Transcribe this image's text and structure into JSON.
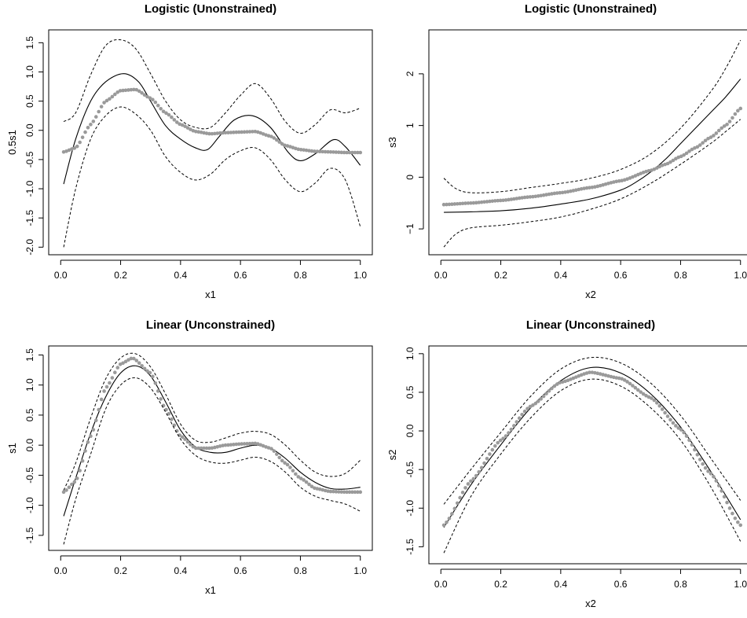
{
  "chart_data": [
    {
      "type": "line",
      "title": "Logistic (Unonstrained)",
      "xlabel": "x1",
      "ylabel": "0.5s1",
      "xlim": [
        -0.04,
        1.04
      ],
      "ylim": [
        -2.13,
        1.72
      ],
      "xticks": [
        0.0,
        0.2,
        0.4,
        0.6,
        0.8,
        1.0
      ],
      "xtick_labels": [
        "0.0",
        "0.2",
        "0.4",
        "0.6",
        "0.8",
        "1.0"
      ],
      "yticks": [
        -2.0,
        -1.5,
        -1.0,
        -0.5,
        0.0,
        0.5,
        1.0,
        1.5
      ],
      "ytick_labels": [
        "-2.0",
        "-1.5",
        "-1.0",
        "-0.5",
        "0.0",
        "0.5",
        "1.0",
        "1.5"
      ],
      "grid": false,
      "series": [
        {
          "role": "true-function",
          "style": "solid-black",
          "x": [
            0.01,
            0.05,
            0.1,
            0.15,
            0.21,
            0.26,
            0.3,
            0.35,
            0.4,
            0.45,
            0.49,
            0.53,
            0.58,
            0.64,
            0.7,
            0.76,
            0.8,
            0.85,
            0.91,
            0.95,
            1.0
          ],
          "y": [
            -0.92,
            -0.15,
            0.5,
            0.83,
            0.97,
            0.83,
            0.5,
            0.08,
            -0.15,
            -0.3,
            -0.33,
            -0.1,
            0.18,
            0.25,
            0.05,
            -0.38,
            -0.52,
            -0.4,
            -0.16,
            -0.28,
            -0.6
          ]
        },
        {
          "role": "estimate",
          "style": "grey-dots",
          "x": [
            0.01,
            0.05,
            0.1,
            0.15,
            0.2,
            0.25,
            0.3,
            0.35,
            0.4,
            0.45,
            0.5,
            0.55,
            0.6,
            0.65,
            0.7,
            0.75,
            0.8,
            0.85,
            0.9,
            0.95,
            1.0
          ],
          "y": [
            -0.37,
            -0.3,
            0.1,
            0.5,
            0.68,
            0.7,
            0.55,
            0.3,
            0.1,
            -0.02,
            -0.06,
            -0.04,
            -0.03,
            -0.02,
            -0.1,
            -0.26,
            -0.33,
            -0.36,
            -0.37,
            -0.38,
            -0.38
          ]
        },
        {
          "role": "upper-band",
          "style": "dashed-black",
          "x": [
            0.01,
            0.05,
            0.1,
            0.15,
            0.2,
            0.25,
            0.3,
            0.35,
            0.4,
            0.45,
            0.5,
            0.55,
            0.6,
            0.65,
            0.7,
            0.75,
            0.8,
            0.85,
            0.9,
            0.95,
            1.0
          ],
          "y": [
            0.15,
            0.3,
            0.95,
            1.45,
            1.55,
            1.4,
            0.97,
            0.5,
            0.18,
            0.05,
            0.05,
            0.3,
            0.6,
            0.8,
            0.55,
            0.15,
            -0.05,
            0.1,
            0.35,
            0.3,
            0.38
          ]
        },
        {
          "role": "lower-band",
          "style": "dashed-black",
          "x": [
            0.01,
            0.05,
            0.1,
            0.15,
            0.2,
            0.25,
            0.3,
            0.35,
            0.4,
            0.45,
            0.5,
            0.55,
            0.6,
            0.65,
            0.7,
            0.75,
            0.8,
            0.85,
            0.9,
            0.95,
            1.0
          ],
          "y": [
            -2.0,
            -1.0,
            -0.15,
            0.25,
            0.4,
            0.28,
            0.0,
            -0.45,
            -0.72,
            -0.85,
            -0.75,
            -0.5,
            -0.35,
            -0.3,
            -0.5,
            -0.85,
            -1.05,
            -0.9,
            -0.65,
            -0.85,
            -1.65
          ]
        }
      ]
    },
    {
      "type": "line",
      "title": "Logistic (Unonstrained)",
      "xlabel": "x2",
      "ylabel": "s3",
      "xlim": [
        -0.04,
        1.04
      ],
      "ylim": [
        -1.5,
        2.85
      ],
      "xticks": [
        0.0,
        0.2,
        0.4,
        0.6,
        0.8,
        1.0
      ],
      "xtick_labels": [
        "0.0",
        "0.2",
        "0.4",
        "0.6",
        "0.8",
        "1.0"
      ],
      "yticks": [
        -1,
        0,
        1,
        2
      ],
      "ytick_labels": [
        "−1",
        "0",
        "1",
        "2"
      ],
      "grid": false,
      "series": [
        {
          "role": "true-function",
          "style": "solid-black",
          "x": [
            0.01,
            0.1,
            0.2,
            0.3,
            0.4,
            0.5,
            0.6,
            0.65,
            0.7,
            0.75,
            0.8,
            0.85,
            0.9,
            0.95,
            1.0
          ],
          "y": [
            -0.68,
            -0.67,
            -0.65,
            -0.6,
            -0.52,
            -0.42,
            -0.25,
            -0.1,
            0.1,
            0.35,
            0.65,
            0.95,
            1.25,
            1.55,
            1.9
          ]
        },
        {
          "role": "estimate",
          "style": "grey-dots",
          "x": [
            0.01,
            0.1,
            0.2,
            0.3,
            0.4,
            0.5,
            0.6,
            0.7,
            0.75,
            0.8,
            0.85,
            0.9,
            0.95,
            1.0
          ],
          "y": [
            -0.53,
            -0.5,
            -0.45,
            -0.38,
            -0.3,
            -0.2,
            -0.07,
            0.13,
            0.25,
            0.4,
            0.57,
            0.77,
            1.0,
            1.33
          ]
        },
        {
          "role": "upper-band",
          "style": "dashed-black",
          "x": [
            0.01,
            0.05,
            0.1,
            0.2,
            0.3,
            0.4,
            0.5,
            0.6,
            0.7,
            0.8,
            0.9,
            0.95,
            1.0
          ],
          "y": [
            -0.02,
            -0.22,
            -0.3,
            -0.28,
            -0.2,
            -0.12,
            -0.02,
            0.15,
            0.45,
            0.95,
            1.65,
            2.1,
            2.65
          ]
        },
        {
          "role": "lower-band",
          "style": "dashed-black",
          "x": [
            0.01,
            0.05,
            0.1,
            0.2,
            0.3,
            0.4,
            0.5,
            0.6,
            0.7,
            0.8,
            0.9,
            0.95,
            1.0
          ],
          "y": [
            -1.35,
            -1.1,
            -0.98,
            -0.93,
            -0.86,
            -0.77,
            -0.62,
            -0.42,
            -0.12,
            0.25,
            0.65,
            0.88,
            1.12
          ]
        }
      ]
    },
    {
      "type": "line",
      "title": "Linear (Unconstrained)",
      "xlabel": "x1",
      "ylabel": "s1",
      "xlim": [
        -0.04,
        1.04
      ],
      "ylim": [
        -1.75,
        1.65
      ],
      "xticks": [
        0.0,
        0.2,
        0.4,
        0.6,
        0.8,
        1.0
      ],
      "xtick_labels": [
        "0.0",
        "0.2",
        "0.4",
        "0.6",
        "0.8",
        "1.0"
      ],
      "yticks": [
        -1.5,
        -1.0,
        -0.5,
        0.0,
        0.5,
        1.0,
        1.5
      ],
      "ytick_labels": [
        "-1.5",
        "-1.0",
        "-0.5",
        "0.0",
        "0.5",
        "1.0",
        "1.5"
      ],
      "grid": false,
      "series": [
        {
          "role": "true-function",
          "style": "solid-black",
          "x": [
            0.01,
            0.05,
            0.1,
            0.15,
            0.2,
            0.25,
            0.3,
            0.35,
            0.4,
            0.45,
            0.5,
            0.55,
            0.6,
            0.65,
            0.7,
            0.75,
            0.8,
            0.85,
            0.9,
            0.95,
            1.0
          ],
          "y": [
            -1.18,
            -0.55,
            0.2,
            0.8,
            1.2,
            1.32,
            1.15,
            0.72,
            0.25,
            -0.03,
            -0.12,
            -0.12,
            -0.05,
            0.0,
            -0.05,
            -0.22,
            -0.45,
            -0.62,
            -0.72,
            -0.73,
            -0.7
          ]
        },
        {
          "role": "estimate",
          "style": "grey-dots",
          "x": [
            0.01,
            0.05,
            0.1,
            0.15,
            0.2,
            0.24,
            0.3,
            0.35,
            0.4,
            0.45,
            0.5,
            0.55,
            0.6,
            0.65,
            0.7,
            0.75,
            0.8,
            0.85,
            0.9,
            0.95,
            1.0
          ],
          "y": [
            -0.78,
            -0.6,
            0.15,
            0.95,
            1.35,
            1.45,
            1.2,
            0.6,
            0.15,
            -0.05,
            -0.05,
            0.0,
            0.02,
            0.03,
            -0.05,
            -0.3,
            -0.55,
            -0.72,
            -0.77,
            -0.78,
            -0.78
          ]
        },
        {
          "role": "upper-band",
          "style": "dashed-black",
          "x": [
            0.01,
            0.05,
            0.1,
            0.15,
            0.2,
            0.25,
            0.3,
            0.35,
            0.4,
            0.45,
            0.5,
            0.55,
            0.6,
            0.65,
            0.7,
            0.75,
            0.8,
            0.85,
            0.9,
            0.95,
            1.0
          ],
          "y": [
            -0.75,
            -0.3,
            0.45,
            1.1,
            1.45,
            1.52,
            1.3,
            0.85,
            0.35,
            0.08,
            0.05,
            0.12,
            0.2,
            0.23,
            0.18,
            0.0,
            -0.25,
            -0.45,
            -0.52,
            -0.47,
            -0.25
          ]
        },
        {
          "role": "lower-band",
          "style": "dashed-black",
          "x": [
            0.01,
            0.05,
            0.1,
            0.15,
            0.2,
            0.25,
            0.3,
            0.35,
            0.4,
            0.45,
            0.5,
            0.55,
            0.6,
            0.65,
            0.7,
            0.75,
            0.8,
            0.85,
            0.9,
            0.95,
            1.0
          ],
          "y": [
            -1.65,
            -0.9,
            -0.15,
            0.6,
            1.0,
            1.12,
            0.95,
            0.55,
            0.1,
            -0.17,
            -0.28,
            -0.3,
            -0.25,
            -0.2,
            -0.27,
            -0.45,
            -0.7,
            -0.85,
            -0.92,
            -0.98,
            -1.1
          ]
        }
      ]
    },
    {
      "type": "line",
      "title": "Linear (Unconstrained)",
      "xlabel": "x2",
      "ylabel": "s2",
      "xlim": [
        -0.04,
        1.04
      ],
      "ylim": [
        -1.72,
        1.1
      ],
      "xticks": [
        0.0,
        0.2,
        0.4,
        0.6,
        0.8,
        1.0
      ],
      "xtick_labels": [
        "0.0",
        "0.2",
        "0.4",
        "0.6",
        "0.8",
        "1.0"
      ],
      "yticks": [
        -1.5,
        -1.0,
        -0.5,
        0.0,
        0.5,
        1.0
      ],
      "ytick_labels": [
        "-1.5",
        "-1.0",
        "-0.5",
        "0.0",
        "0.5",
        "1.0"
      ],
      "grid": false,
      "series": [
        {
          "role": "true-function",
          "style": "solid-black",
          "x": [
            0.01,
            0.1,
            0.2,
            0.3,
            0.4,
            0.5,
            0.6,
            0.7,
            0.8,
            0.9,
            1.0
          ],
          "y": [
            -1.25,
            -0.7,
            -0.18,
            0.3,
            0.65,
            0.82,
            0.75,
            0.48,
            0.05,
            -0.52,
            -1.15
          ]
        },
        {
          "role": "estimate",
          "style": "grey-dots",
          "x": [
            0.01,
            0.1,
            0.2,
            0.3,
            0.4,
            0.5,
            0.6,
            0.7,
            0.8,
            0.9,
            1.0
          ],
          "y": [
            -1.22,
            -0.65,
            -0.12,
            0.32,
            0.63,
            0.76,
            0.68,
            0.43,
            0.02,
            -0.55,
            -1.22
          ]
        },
        {
          "role": "upper-band",
          "style": "dashed-black",
          "x": [
            0.01,
            0.1,
            0.2,
            0.3,
            0.4,
            0.5,
            0.6,
            0.7,
            0.8,
            0.9,
            1.0
          ],
          "y": [
            -0.95,
            -0.5,
            -0.02,
            0.45,
            0.8,
            0.95,
            0.88,
            0.62,
            0.2,
            -0.35,
            -0.9
          ]
        },
        {
          "role": "lower-band",
          "style": "dashed-black",
          "x": [
            0.01,
            0.1,
            0.2,
            0.3,
            0.4,
            0.5,
            0.6,
            0.7,
            0.8,
            0.9,
            1.0
          ],
          "y": [
            -1.58,
            -0.85,
            -0.3,
            0.17,
            0.52,
            0.67,
            0.58,
            0.3,
            -0.12,
            -0.72,
            -1.43
          ]
        }
      ]
    }
  ]
}
